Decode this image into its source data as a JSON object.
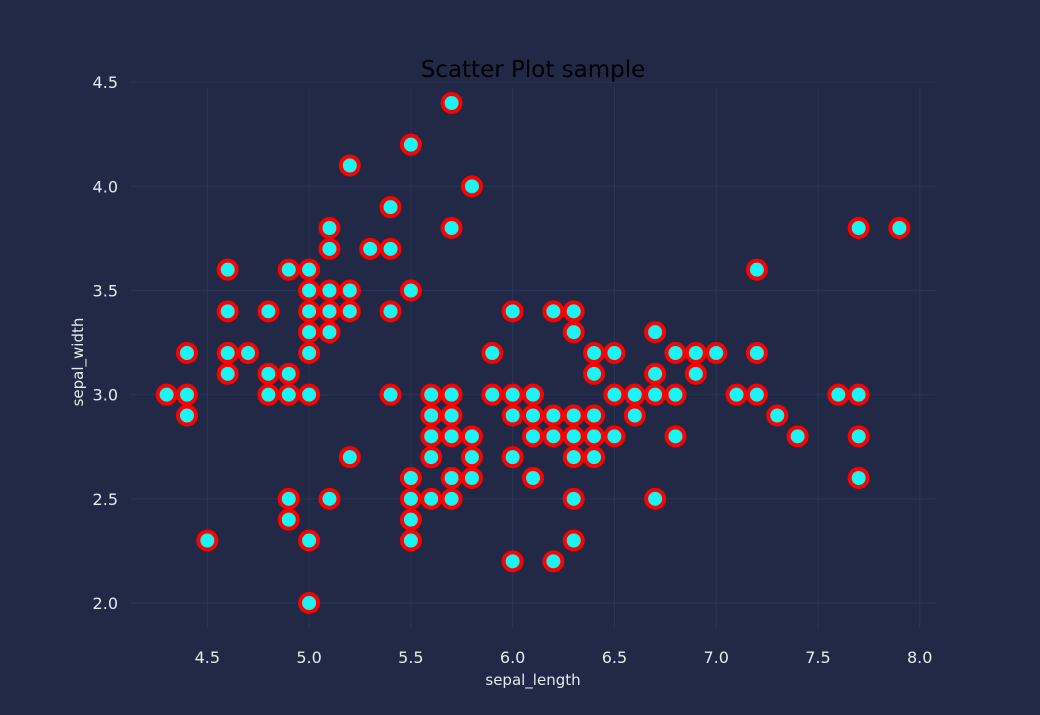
{
  "chart_data": {
    "type": "scatter",
    "title": "Scatter Plot sample",
    "xlabel": "sepal_length",
    "ylabel": "sepal_width",
    "xlim": [
      4.12,
      8.08
    ],
    "ylim": [
      1.88,
      4.52
    ],
    "xticks": [
      "4.5",
      "5.0",
      "5.5",
      "6.0",
      "6.5",
      "7.0",
      "7.5",
      "8.0"
    ],
    "yticks": [
      "2.0",
      "2.5",
      "3.0",
      "3.5",
      "4.0",
      "4.5"
    ],
    "grid": true,
    "marker": {
      "face_color": "#1AF4F4",
      "edge_color": "#FF0000"
    },
    "colors": {
      "background": "#212946",
      "grid": "#2A3459",
      "text": "#E6E9EF"
    },
    "points": [
      [
        4.3,
        3.0
      ],
      [
        4.4,
        3.2
      ],
      [
        4.4,
        3.0
      ],
      [
        4.4,
        2.9
      ],
      [
        4.5,
        2.3
      ],
      [
        4.6,
        3.6
      ],
      [
        4.6,
        3.4
      ],
      [
        4.6,
        3.2
      ],
      [
        4.6,
        3.1
      ],
      [
        4.7,
        3.2
      ],
      [
        4.8,
        3.4
      ],
      [
        4.8,
        3.1
      ],
      [
        4.8,
        3.0
      ],
      [
        4.9,
        3.6
      ],
      [
        4.9,
        3.1
      ],
      [
        4.9,
        3.0
      ],
      [
        4.9,
        2.5
      ],
      [
        4.9,
        2.4
      ],
      [
        5.0,
        3.6
      ],
      [
        5.0,
        3.5
      ],
      [
        5.0,
        3.4
      ],
      [
        5.0,
        3.3
      ],
      [
        5.0,
        3.2
      ],
      [
        5.0,
        3.0
      ],
      [
        5.0,
        2.3
      ],
      [
        5.0,
        2.0
      ],
      [
        5.1,
        3.8
      ],
      [
        5.1,
        3.7
      ],
      [
        5.1,
        3.5
      ],
      [
        5.1,
        3.4
      ],
      [
        5.1,
        3.3
      ],
      [
        5.1,
        2.5
      ],
      [
        5.2,
        4.1
      ],
      [
        5.2,
        3.5
      ],
      [
        5.2,
        3.4
      ],
      [
        5.2,
        2.7
      ],
      [
        5.3,
        3.7
      ],
      [
        5.4,
        3.9
      ],
      [
        5.4,
        3.7
      ],
      [
        5.4,
        3.4
      ],
      [
        5.4,
        3.0
      ],
      [
        5.5,
        4.2
      ],
      [
        5.5,
        3.5
      ],
      [
        5.5,
        2.6
      ],
      [
        5.5,
        2.5
      ],
      [
        5.5,
        2.4
      ],
      [
        5.5,
        2.3
      ],
      [
        5.6,
        3.0
      ],
      [
        5.6,
        2.9
      ],
      [
        5.6,
        2.8
      ],
      [
        5.6,
        2.7
      ],
      [
        5.6,
        2.5
      ],
      [
        5.7,
        4.4
      ],
      [
        5.7,
        3.8
      ],
      [
        5.7,
        3.0
      ],
      [
        5.7,
        2.9
      ],
      [
        5.7,
        2.8
      ],
      [
        5.7,
        2.6
      ],
      [
        5.7,
        2.5
      ],
      [
        5.8,
        4.0
      ],
      [
        5.8,
        2.8
      ],
      [
        5.8,
        2.7
      ],
      [
        5.8,
        2.6
      ],
      [
        5.9,
        3.2
      ],
      [
        5.9,
        3.0
      ],
      [
        6.0,
        3.4
      ],
      [
        6.0,
        3.0
      ],
      [
        6.0,
        2.9
      ],
      [
        6.0,
        2.7
      ],
      [
        6.0,
        2.2
      ],
      [
        6.1,
        3.0
      ],
      [
        6.1,
        2.9
      ],
      [
        6.1,
        2.8
      ],
      [
        6.1,
        2.6
      ],
      [
        6.2,
        3.4
      ],
      [
        6.2,
        2.9
      ],
      [
        6.2,
        2.8
      ],
      [
        6.2,
        2.2
      ],
      [
        6.3,
        3.4
      ],
      [
        6.3,
        3.3
      ],
      [
        6.3,
        2.9
      ],
      [
        6.3,
        2.8
      ],
      [
        6.3,
        2.7
      ],
      [
        6.3,
        2.5
      ],
      [
        6.3,
        2.3
      ],
      [
        6.4,
        3.2
      ],
      [
        6.4,
        3.1
      ],
      [
        6.4,
        2.9
      ],
      [
        6.4,
        2.8
      ],
      [
        6.4,
        2.7
      ],
      [
        6.5,
        3.2
      ],
      [
        6.5,
        3.0
      ],
      [
        6.5,
        2.8
      ],
      [
        6.6,
        3.0
      ],
      [
        6.6,
        2.9
      ],
      [
        6.7,
        3.3
      ],
      [
        6.7,
        3.1
      ],
      [
        6.7,
        3.0
      ],
      [
        6.7,
        2.5
      ],
      [
        6.8,
        3.2
      ],
      [
        6.8,
        3.0
      ],
      [
        6.8,
        2.8
      ],
      [
        6.9,
        3.2
      ],
      [
        6.9,
        3.1
      ],
      [
        7.0,
        3.2
      ],
      [
        7.1,
        3.0
      ],
      [
        7.2,
        3.6
      ],
      [
        7.2,
        3.2
      ],
      [
        7.2,
        3.0
      ],
      [
        7.3,
        2.9
      ],
      [
        7.4,
        2.8
      ],
      [
        7.6,
        3.0
      ],
      [
        7.7,
        3.8
      ],
      [
        7.7,
        3.0
      ],
      [
        7.7,
        2.8
      ],
      [
        7.7,
        2.6
      ],
      [
        7.9,
        3.8
      ]
    ]
  }
}
